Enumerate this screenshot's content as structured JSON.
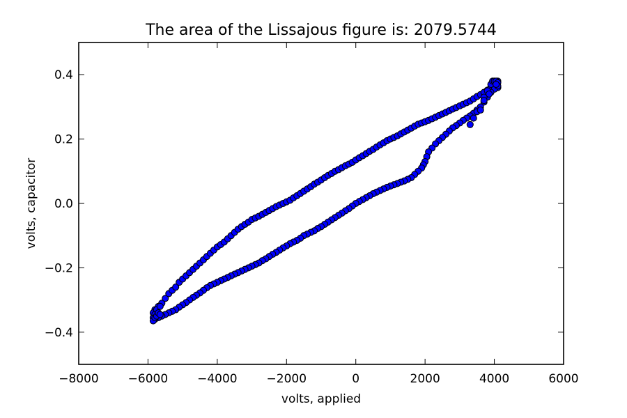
{
  "chart_data": {
    "type": "scatter",
    "title": "The area of the Lissajous figure is: 2079.5744",
    "xlabel": "volts, applied",
    "ylabel": "volts, capacitor",
    "xlim": [
      -8000,
      6000
    ],
    "ylim": [
      -0.5,
      0.5
    ],
    "xticks": [
      -8000,
      -6000,
      -4000,
      -2000,
      0,
      2000,
      4000,
      6000
    ],
    "xtick_labels": [
      "−8000",
      "−6000",
      "−4000",
      "−2000",
      "0",
      "2000",
      "4000",
      "6000"
    ],
    "yticks": [
      -0.4,
      -0.2,
      0.0,
      0.2,
      0.4
    ],
    "ytick_labels": [
      "−0.4",
      "−0.2",
      "0.0",
      "0.2",
      "0.4"
    ],
    "grid": false,
    "marker_color": "#0000ff",
    "marker_edge_color": "#000000",
    "series": [
      {
        "upper_branch": [
          [
            -5800,
            -0.33
          ],
          [
            -5700,
            -0.32
          ],
          [
            -5600,
            -0.31
          ],
          [
            -5500,
            -0.295
          ],
          [
            -5400,
            -0.28
          ],
          [
            -5300,
            -0.27
          ],
          [
            -5200,
            -0.26
          ],
          [
            -5100,
            -0.245
          ],
          [
            -5000,
            -0.235
          ],
          [
            -4900,
            -0.225
          ],
          [
            -4800,
            -0.215
          ],
          [
            -4700,
            -0.205
          ],
          [
            -4600,
            -0.195
          ],
          [
            -4500,
            -0.185
          ],
          [
            -4400,
            -0.175
          ],
          [
            -4300,
            -0.165
          ],
          [
            -4200,
            -0.155
          ],
          [
            -4100,
            -0.145
          ],
          [
            -4000,
            -0.135
          ],
          [
            -3900,
            -0.128
          ],
          [
            -3800,
            -0.12
          ],
          [
            -3700,
            -0.11
          ],
          [
            -3600,
            -0.1
          ],
          [
            -3500,
            -0.09
          ],
          [
            -3400,
            -0.08
          ],
          [
            -3300,
            -0.072
          ],
          [
            -3200,
            -0.065
          ],
          [
            -3100,
            -0.058
          ],
          [
            -3000,
            -0.05
          ],
          [
            -2900,
            -0.045
          ],
          [
            -2800,
            -0.04
          ],
          [
            -2700,
            -0.034
          ],
          [
            -2600,
            -0.028
          ],
          [
            -2500,
            -0.022
          ],
          [
            -2400,
            -0.016
          ],
          [
            -2300,
            -0.01
          ],
          [
            -2200,
            -0.005
          ],
          [
            -2100,
            0.0
          ],
          [
            -2000,
            0.005
          ],
          [
            -1900,
            0.01
          ],
          [
            -1800,
            0.017
          ],
          [
            -1700,
            0.024
          ],
          [
            -1600,
            0.031
          ],
          [
            -1500,
            0.038
          ],
          [
            -1400,
            0.045
          ],
          [
            -1300,
            0.052
          ],
          [
            -1200,
            0.06
          ],
          [
            -1100,
            0.066
          ],
          [
            -1000,
            0.073
          ],
          [
            -900,
            0.08
          ],
          [
            -800,
            0.087
          ],
          [
            -700,
            0.093
          ],
          [
            -600,
            0.1
          ],
          [
            -500,
            0.105
          ],
          [
            -400,
            0.111
          ],
          [
            -300,
            0.117
          ],
          [
            -200,
            0.122
          ],
          [
            -100,
            0.128
          ],
          [
            0,
            0.135
          ],
          [
            100,
            0.142
          ],
          [
            200,
            0.148
          ],
          [
            300,
            0.155
          ],
          [
            400,
            0.162
          ],
          [
            500,
            0.168
          ],
          [
            600,
            0.175
          ],
          [
            700,
            0.182
          ],
          [
            800,
            0.188
          ],
          [
            900,
            0.195
          ],
          [
            1000,
            0.2
          ],
          [
            1100,
            0.205
          ],
          [
            1200,
            0.21
          ],
          [
            1300,
            0.216
          ],
          [
            1400,
            0.222
          ],
          [
            1500,
            0.228
          ],
          [
            1600,
            0.234
          ],
          [
            1700,
            0.24
          ],
          [
            1800,
            0.246
          ],
          [
            1900,
            0.25
          ],
          [
            2000,
            0.254
          ],
          [
            2100,
            0.258
          ],
          [
            2200,
            0.263
          ],
          [
            2300,
            0.268
          ],
          [
            2400,
            0.273
          ],
          [
            2500,
            0.278
          ],
          [
            2600,
            0.283
          ],
          [
            2700,
            0.288
          ],
          [
            2800,
            0.293
          ],
          [
            2900,
            0.298
          ],
          [
            3000,
            0.303
          ],
          [
            3100,
            0.308
          ],
          [
            3200,
            0.313
          ],
          [
            3300,
            0.318
          ],
          [
            3400,
            0.325
          ],
          [
            3500,
            0.332
          ],
          [
            3600,
            0.338
          ],
          [
            3700,
            0.345
          ],
          [
            3800,
            0.352
          ],
          [
            3900,
            0.36
          ],
          [
            4000,
            0.368
          ],
          [
            4050,
            0.375
          ],
          [
            4100,
            0.38
          ]
        ],
        "lower_branch": [
          [
            4100,
            0.36
          ],
          [
            4000,
            0.355
          ],
          [
            3900,
            0.345
          ],
          [
            3800,
            0.33
          ],
          [
            3700,
            0.315
          ],
          [
            3600,
            0.3
          ],
          [
            3500,
            0.29
          ],
          [
            3400,
            0.28
          ],
          [
            3300,
            0.272
          ],
          [
            3200,
            0.265
          ],
          [
            3100,
            0.258
          ],
          [
            3000,
            0.25
          ],
          [
            2900,
            0.242
          ],
          [
            2800,
            0.235
          ],
          [
            2700,
            0.225
          ],
          [
            2600,
            0.215
          ],
          [
            2500,
            0.205
          ],
          [
            2400,
            0.195
          ],
          [
            2300,
            0.185
          ],
          [
            2200,
            0.172
          ],
          [
            2100,
            0.16
          ],
          [
            2050,
            0.145
          ],
          [
            2000,
            0.13
          ],
          [
            1950,
            0.12
          ],
          [
            1900,
            0.11
          ],
          [
            1800,
            0.1
          ],
          [
            1700,
            0.09
          ],
          [
            1600,
            0.08
          ],
          [
            1500,
            0.075
          ],
          [
            1400,
            0.07
          ],
          [
            1300,
            0.066
          ],
          [
            1200,
            0.062
          ],
          [
            1100,
            0.058
          ],
          [
            1000,
            0.054
          ],
          [
            900,
            0.05
          ],
          [
            800,
            0.045
          ],
          [
            700,
            0.04
          ],
          [
            600,
            0.035
          ],
          [
            500,
            0.03
          ],
          [
            400,
            0.024
          ],
          [
            300,
            0.018
          ],
          [
            200,
            0.012
          ],
          [
            100,
            0.006
          ],
          [
            0,
            0.0
          ],
          [
            -100,
            -0.008
          ],
          [
            -200,
            -0.016
          ],
          [
            -300,
            -0.023
          ],
          [
            -400,
            -0.03
          ],
          [
            -500,
            -0.037
          ],
          [
            -600,
            -0.044
          ],
          [
            -700,
            -0.051
          ],
          [
            -800,
            -0.058
          ],
          [
            -900,
            -0.065
          ],
          [
            -1000,
            -0.072
          ],
          [
            -1100,
            -0.078
          ],
          [
            -1200,
            -0.085
          ],
          [
            -1300,
            -0.09
          ],
          [
            -1400,
            -0.095
          ],
          [
            -1500,
            -0.1
          ],
          [
            -1600,
            -0.108
          ],
          [
            -1700,
            -0.115
          ],
          [
            -1800,
            -0.12
          ],
          [
            -1900,
            -0.125
          ],
          [
            -2000,
            -0.132
          ],
          [
            -2100,
            -0.138
          ],
          [
            -2200,
            -0.145
          ],
          [
            -2300,
            -0.152
          ],
          [
            -2400,
            -0.158
          ],
          [
            -2500,
            -0.165
          ],
          [
            -2600,
            -0.172
          ],
          [
            -2700,
            -0.178
          ],
          [
            -2800,
            -0.185
          ],
          [
            -2900,
            -0.19
          ],
          [
            -3000,
            -0.195
          ],
          [
            -3100,
            -0.2
          ],
          [
            -3200,
            -0.205
          ],
          [
            -3300,
            -0.21
          ],
          [
            -3400,
            -0.215
          ],
          [
            -3500,
            -0.22
          ],
          [
            -3600,
            -0.225
          ],
          [
            -3700,
            -0.23
          ],
          [
            -3800,
            -0.235
          ],
          [
            -3900,
            -0.24
          ],
          [
            -4000,
            -0.245
          ],
          [
            -4100,
            -0.25
          ],
          [
            -4200,
            -0.255
          ],
          [
            -4300,
            -0.262
          ],
          [
            -4400,
            -0.27
          ],
          [
            -4500,
            -0.278
          ],
          [
            -4600,
            -0.285
          ],
          [
            -4700,
            -0.292
          ],
          [
            -4800,
            -0.3
          ],
          [
            -4900,
            -0.308
          ],
          [
            -5000,
            -0.315
          ],
          [
            -5100,
            -0.322
          ],
          [
            -5200,
            -0.33
          ],
          [
            -5300,
            -0.335
          ],
          [
            -5400,
            -0.34
          ],
          [
            -5500,
            -0.345
          ],
          [
            -5600,
            -0.35
          ],
          [
            -5700,
            -0.355
          ],
          [
            -5800,
            -0.36
          ]
        ],
        "right_edge": [
          [
            3300,
            0.245
          ],
          [
            3400,
            0.265
          ],
          [
            3500,
            0.285
          ],
          [
            3600,
            0.29
          ],
          [
            3700,
            0.33
          ],
          [
            3800,
            0.35
          ],
          [
            3900,
            0.37
          ],
          [
            3950,
            0.38
          ],
          [
            4000,
            0.38
          ],
          [
            4050,
            0.38
          ],
          [
            4100,
            0.375
          ],
          [
            4100,
            0.365
          ],
          [
            4050,
            0.37
          ],
          [
            3850,
            0.34
          ],
          [
            3700,
            0.32
          ]
        ],
        "left_edge": [
          [
            -5850,
            -0.34
          ],
          [
            -5850,
            -0.355
          ],
          [
            -5850,
            -0.365
          ],
          [
            -5800,
            -0.345
          ],
          [
            -5800,
            -0.355
          ],
          [
            -5750,
            -0.33
          ],
          [
            -5750,
            -0.35
          ],
          [
            -5700,
            -0.34
          ],
          [
            -5650,
            -0.32
          ],
          [
            -5650,
            -0.345
          ]
        ]
      }
    ]
  }
}
